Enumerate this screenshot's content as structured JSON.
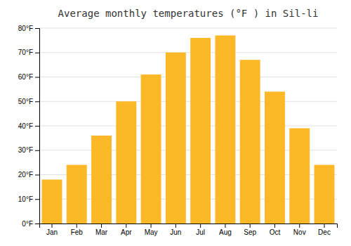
{
  "chart_data": {
    "type": "bar",
    "title": "Average monthly temperatures (°F ) in Sil-li",
    "categories": [
      "Jan",
      "Feb",
      "Mar",
      "Apr",
      "May",
      "Jun",
      "Jul",
      "Aug",
      "Sep",
      "Oct",
      "Nov",
      "Dec"
    ],
    "values": [
      18,
      24,
      36,
      50,
      61,
      70,
      76,
      77,
      67,
      54,
      39,
      24
    ],
    "color": "#FDB827",
    "ylim": [
      0,
      80
    ],
    "yticks": [
      {
        "value": 0,
        "label": "0°F"
      },
      {
        "value": 10,
        "label": "10°F"
      },
      {
        "value": 20,
        "label": "20°F"
      },
      {
        "value": 30,
        "label": "30°F"
      },
      {
        "value": 40,
        "label": "40°F"
      },
      {
        "value": 50,
        "label": "50°F"
      },
      {
        "value": 60,
        "label": "60°F"
      },
      {
        "value": 70,
        "label": "70°F"
      },
      {
        "value": 80,
        "label": "80°F"
      }
    ],
    "grid": true
  }
}
